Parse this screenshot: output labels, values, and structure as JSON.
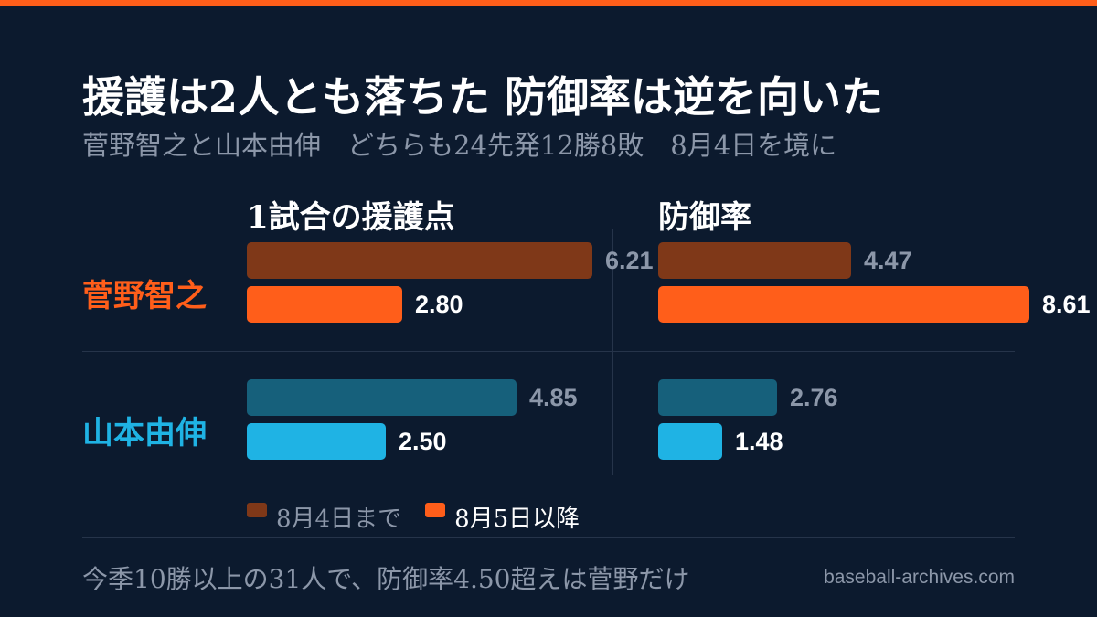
{
  "title": "援護は2人とも落ちた 防御率は逆を向いた",
  "subtitle": "菅野智之と山本由伸　どちらも24先発12勝8敗　8月4日を境に",
  "colors": {
    "accent": "#ff5e1a",
    "background": "#0c1a2e",
    "sugano_before": "#7f3818",
    "sugano_after": "#ff5e1a",
    "yamamoto_before": "#16607b",
    "yamamoto_after": "#1fb3e4",
    "muted_text": "#8c97a9"
  },
  "chart_data": {
    "type": "bar",
    "orientation": "horizontal",
    "panels": [
      {
        "title": "1試合の援護点",
        "xlim": [
          0,
          6.9
        ]
      },
      {
        "title": "防御率",
        "xlim": [
          0,
          8.9
        ]
      }
    ],
    "categories": [
      "菅野智之",
      "山本由伸"
    ],
    "series": [
      {
        "name": "8月4日まで",
        "run_support": [
          6.21,
          4.85
        ],
        "era": [
          4.47,
          2.76
        ]
      },
      {
        "name": "8月5日以降",
        "run_support": [
          2.8,
          2.5
        ],
        "era": [
          8.61,
          1.48
        ]
      }
    ],
    "value_labels": {
      "run_support": [
        [
          "6.21",
          "2.80"
        ],
        [
          "4.85",
          "2.50"
        ]
      ],
      "era": [
        [
          "4.47",
          "8.61"
        ],
        [
          "2.76",
          "1.48"
        ]
      ]
    },
    "legend": {
      "position": "bottom-left",
      "entries": [
        "8月4日まで",
        "8月5日以降"
      ]
    },
    "grid": false
  },
  "footnote": "今季10勝以上の31人で、防御率4.50超えは菅野だけ",
  "source": "baseball-archives.com"
}
